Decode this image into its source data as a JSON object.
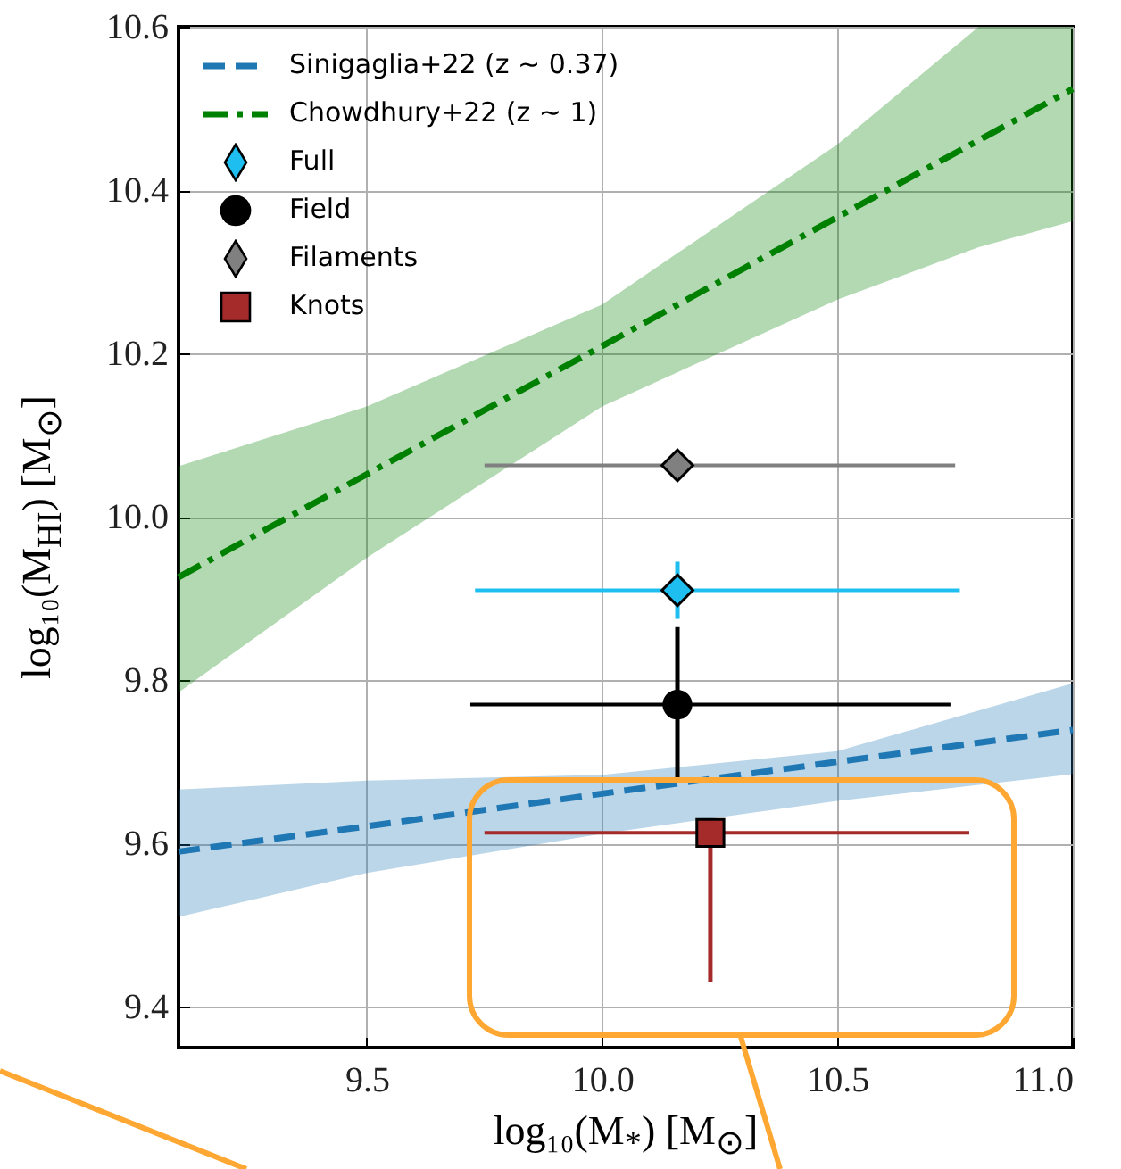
{
  "chart_data": {
    "type": "scatter",
    "xlabel": "log₁₀(M$_{*}$) [M$_{⊙}$]",
    "ylabel": "log₁₀(M$_{HI}$) [M$_{⊙}$]",
    "xlim": [
      9.1,
      11.0
    ],
    "xticks": [
      9.5,
      {
        "value": 10,
        "label": "10.0"
      },
      10.5,
      {
        "value": 11,
        "label": "11.0"
      }
    ],
    "ylim": [
      9.35,
      10.6
    ],
    "yticks": [
      9.4,
      9.6,
      9.8,
      {
        "value": 10,
        "label": "10.0"
      },
      10.2,
      10.4,
      10.6
    ],
    "grid": true,
    "legend": "top left",
    "series": [
      {
        "name": "Sinigaglia+22 (z ∼ 0.37)",
        "type": "line",
        "line_style": "dashed",
        "color": "#1f77b4",
        "x": [
          9.1,
          9.5,
          10.0,
          10.5,
          11.0
        ],
        "values": [
          9.59,
          9.621,
          9.661,
          9.7,
          9.739
        ],
        "lower": [
          9.51,
          9.564,
          9.612,
          9.652,
          9.685
        ],
        "upper": [
          9.666,
          9.677,
          9.684,
          9.713,
          9.796
        ]
      },
      {
        "name": "Chowdhury+22 (z ∼ 1)",
        "type": "line",
        "line_style": "dashdot",
        "color": "#008000",
        "x": [
          9.1,
          9.5,
          10.0,
          10.5,
          10.8,
          11.0
        ],
        "values": [
          9.926,
          10.052,
          10.209,
          10.367,
          10.461,
          10.524
        ],
        "lower": [
          9.785,
          9.95,
          10.135,
          10.266,
          10.33,
          10.362
        ],
        "upper": [
          10.062,
          10.135,
          10.26,
          10.456,
          10.6,
          10.6
        ]
      },
      {
        "name": "Full",
        "marker": "diamond",
        "color": "#1ebff0",
        "x": [
          10.16
        ],
        "values": [
          9.91
        ],
        "xerrors": [
          [
            9.73,
            10.76
          ]
        ],
        "errors": [
          [
            9.875,
            9.945
          ]
        ]
      },
      {
        "name": "Field",
        "marker": "circle",
        "color": "#000000",
        "x": [
          10.16
        ],
        "values": [
          9.77
        ],
        "xerrors": [
          [
            9.72,
            10.74
          ]
        ],
        "errors": [
          [
            9.68,
            9.865
          ]
        ]
      },
      {
        "name": "Filaments",
        "marker": "diamond",
        "color": "#808080",
        "x": [
          10.16
        ],
        "values": [
          10.063
        ],
        "xerrors": [
          [
            9.75,
            10.75
          ]
        ]
      },
      {
        "name": "Knots",
        "marker": "square",
        "color": "#a52a2a",
        "x": [
          10.23
        ],
        "values": [
          9.613
        ],
        "xerrors": [
          [
            9.75,
            10.78
          ]
        ],
        "errors": [
          [
            9.43,
            9.613
          ]
        ]
      }
    ]
  }
}
